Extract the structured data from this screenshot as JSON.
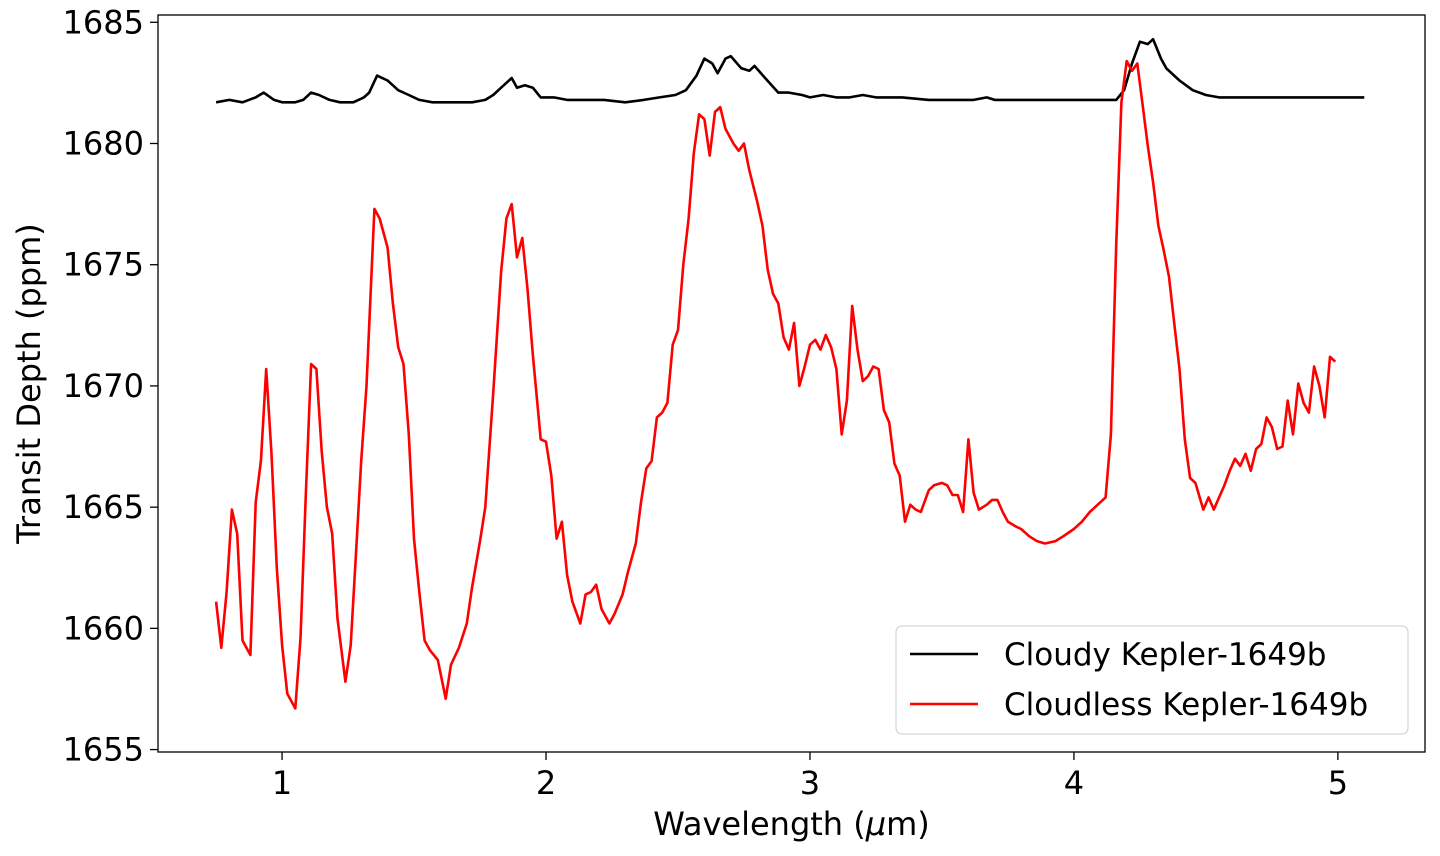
{
  "chart_data": {
    "type": "line",
    "xlabel": "Wavelength (",
    "xlabel_symbol": "μ",
    "xlabel_unit": "m)",
    "ylabel": "Transit Depth (ppm)",
    "xlim": [
      0.53,
      5.33
    ],
    "ylim": [
      1654.9,
      1685.3
    ],
    "xticks": [
      1,
      2,
      3,
      4,
      5
    ],
    "yticks": [
      1655,
      1660,
      1665,
      1670,
      1675,
      1680,
      1685
    ],
    "grid": false,
    "legend_position": "lower-right",
    "series": [
      {
        "name": "Cloudy Kepler-1649b",
        "color": "#000000",
        "points": [
          [
            0.75,
            1681.7
          ],
          [
            0.8,
            1681.8
          ],
          [
            0.85,
            1681.7
          ],
          [
            0.9,
            1681.9
          ],
          [
            0.93,
            1682.1
          ],
          [
            0.97,
            1681.8
          ],
          [
            1.0,
            1681.7
          ],
          [
            1.05,
            1681.7
          ],
          [
            1.08,
            1681.8
          ],
          [
            1.11,
            1682.1
          ],
          [
            1.14,
            1682.0
          ],
          [
            1.18,
            1681.8
          ],
          [
            1.22,
            1681.7
          ],
          [
            1.27,
            1681.7
          ],
          [
            1.31,
            1681.9
          ],
          [
            1.33,
            1682.1
          ],
          [
            1.36,
            1682.8
          ],
          [
            1.4,
            1682.6
          ],
          [
            1.44,
            1682.2
          ],
          [
            1.48,
            1682.0
          ],
          [
            1.52,
            1681.8
          ],
          [
            1.57,
            1681.7
          ],
          [
            1.65,
            1681.7
          ],
          [
            1.72,
            1681.7
          ],
          [
            1.77,
            1681.8
          ],
          [
            1.8,
            1682.0
          ],
          [
            1.83,
            1682.3
          ],
          [
            1.87,
            1682.7
          ],
          [
            1.89,
            1682.3
          ],
          [
            1.92,
            1682.4
          ],
          [
            1.95,
            1682.3
          ],
          [
            1.98,
            1681.9
          ],
          [
            2.03,
            1681.9
          ],
          [
            2.08,
            1681.8
          ],
          [
            2.15,
            1681.8
          ],
          [
            2.22,
            1681.8
          ],
          [
            2.3,
            1681.7
          ],
          [
            2.37,
            1681.8
          ],
          [
            2.43,
            1681.9
          ],
          [
            2.49,
            1682.0
          ],
          [
            2.53,
            1682.2
          ],
          [
            2.57,
            1682.8
          ],
          [
            2.6,
            1683.5
          ],
          [
            2.63,
            1683.3
          ],
          [
            2.65,
            1682.9
          ],
          [
            2.68,
            1683.5
          ],
          [
            2.7,
            1683.6
          ],
          [
            2.74,
            1683.1
          ],
          [
            2.77,
            1683.0
          ],
          [
            2.79,
            1683.2
          ],
          [
            2.83,
            1682.7
          ],
          [
            2.88,
            1682.1
          ],
          [
            2.92,
            1682.1
          ],
          [
            2.97,
            1682.0
          ],
          [
            3.0,
            1681.9
          ],
          [
            3.05,
            1682.0
          ],
          [
            3.1,
            1681.9
          ],
          [
            3.15,
            1681.9
          ],
          [
            3.2,
            1682.0
          ],
          [
            3.25,
            1681.9
          ],
          [
            3.35,
            1681.9
          ],
          [
            3.45,
            1681.8
          ],
          [
            3.55,
            1681.8
          ],
          [
            3.62,
            1681.8
          ],
          [
            3.67,
            1681.9
          ],
          [
            3.7,
            1681.8
          ],
          [
            3.8,
            1681.8
          ],
          [
            3.9,
            1681.8
          ],
          [
            4.0,
            1681.8
          ],
          [
            4.1,
            1681.8
          ],
          [
            4.16,
            1681.8
          ],
          [
            4.19,
            1682.2
          ],
          [
            4.22,
            1683.3
          ],
          [
            4.25,
            1684.2
          ],
          [
            4.28,
            1684.1
          ],
          [
            4.3,
            1684.3
          ],
          [
            4.33,
            1683.5
          ],
          [
            4.35,
            1683.1
          ],
          [
            4.4,
            1682.6
          ],
          [
            4.45,
            1682.2
          ],
          [
            4.5,
            1682.0
          ],
          [
            4.55,
            1681.9
          ],
          [
            4.62,
            1681.9
          ],
          [
            4.7,
            1681.9
          ],
          [
            4.78,
            1681.9
          ],
          [
            4.85,
            1681.9
          ],
          [
            4.92,
            1681.9
          ],
          [
            5.0,
            1681.9
          ],
          [
            5.05,
            1681.9
          ],
          [
            5.1,
            1681.9
          ]
        ]
      },
      {
        "name": "Cloudless Kepler-1649b",
        "color": "#ff0000",
        "points": [
          [
            0.75,
            1661.1
          ],
          [
            0.77,
            1659.2
          ],
          [
            0.79,
            1661.5
          ],
          [
            0.81,
            1664.9
          ],
          [
            0.83,
            1663.9
          ],
          [
            0.85,
            1659.5
          ],
          [
            0.88,
            1658.9
          ],
          [
            0.9,
            1665.2
          ],
          [
            0.92,
            1666.9
          ],
          [
            0.94,
            1670.7
          ],
          [
            0.96,
            1667.2
          ],
          [
            0.98,
            1662.5
          ],
          [
            1.0,
            1659.3
          ],
          [
            1.02,
            1657.3
          ],
          [
            1.05,
            1656.7
          ],
          [
            1.07,
            1659.6
          ],
          [
            1.09,
            1665.5
          ],
          [
            1.11,
            1670.9
          ],
          [
            1.13,
            1670.7
          ],
          [
            1.15,
            1667.3
          ],
          [
            1.17,
            1665.0
          ],
          [
            1.19,
            1663.9
          ],
          [
            1.21,
            1660.4
          ],
          [
            1.24,
            1657.8
          ],
          [
            1.26,
            1659.3
          ],
          [
            1.28,
            1663.1
          ],
          [
            1.3,
            1666.9
          ],
          [
            1.32,
            1670.0
          ],
          [
            1.35,
            1677.3
          ],
          [
            1.37,
            1676.9
          ],
          [
            1.4,
            1675.7
          ],
          [
            1.42,
            1673.4
          ],
          [
            1.44,
            1671.6
          ],
          [
            1.46,
            1670.9
          ],
          [
            1.48,
            1668.0
          ],
          [
            1.5,
            1663.7
          ],
          [
            1.52,
            1661.5
          ],
          [
            1.54,
            1659.5
          ],
          [
            1.56,
            1659.1
          ],
          [
            1.59,
            1658.7
          ],
          [
            1.62,
            1657.1
          ],
          [
            1.64,
            1658.5
          ],
          [
            1.67,
            1659.2
          ],
          [
            1.7,
            1660.2
          ],
          [
            1.72,
            1661.7
          ],
          [
            1.75,
            1663.6
          ],
          [
            1.77,
            1665.0
          ],
          [
            1.8,
            1669.7
          ],
          [
            1.83,
            1674.7
          ],
          [
            1.85,
            1676.9
          ],
          [
            1.87,
            1677.5
          ],
          [
            1.89,
            1675.3
          ],
          [
            1.91,
            1676.1
          ],
          [
            1.93,
            1674.0
          ],
          [
            1.95,
            1671.3
          ],
          [
            1.98,
            1667.8
          ],
          [
            2.0,
            1667.7
          ],
          [
            2.02,
            1666.3
          ],
          [
            2.04,
            1663.7
          ],
          [
            2.06,
            1664.4
          ],
          [
            2.08,
            1662.2
          ],
          [
            2.1,
            1661.1
          ],
          [
            2.13,
            1660.2
          ],
          [
            2.15,
            1661.4
          ],
          [
            2.17,
            1661.5
          ],
          [
            2.19,
            1661.8
          ],
          [
            2.21,
            1660.8
          ],
          [
            2.24,
            1660.2
          ],
          [
            2.26,
            1660.6
          ],
          [
            2.29,
            1661.4
          ],
          [
            2.31,
            1662.3
          ],
          [
            2.34,
            1663.5
          ],
          [
            2.36,
            1665.2
          ],
          [
            2.38,
            1666.6
          ],
          [
            2.4,
            1666.9
          ],
          [
            2.42,
            1668.7
          ],
          [
            2.44,
            1668.9
          ],
          [
            2.46,
            1669.3
          ],
          [
            2.48,
            1671.7
          ],
          [
            2.5,
            1672.3
          ],
          [
            2.52,
            1675.0
          ],
          [
            2.54,
            1676.9
          ],
          [
            2.56,
            1679.6
          ],
          [
            2.58,
            1681.2
          ],
          [
            2.6,
            1681.0
          ],
          [
            2.62,
            1679.5
          ],
          [
            2.64,
            1681.3
          ],
          [
            2.66,
            1681.5
          ],
          [
            2.68,
            1680.6
          ],
          [
            2.71,
            1680.0
          ],
          [
            2.73,
            1679.7
          ],
          [
            2.75,
            1680.0
          ],
          [
            2.77,
            1678.9
          ],
          [
            2.8,
            1677.6
          ],
          [
            2.82,
            1676.6
          ],
          [
            2.84,
            1674.8
          ],
          [
            2.86,
            1673.8
          ],
          [
            2.88,
            1673.4
          ],
          [
            2.9,
            1672.0
          ],
          [
            2.92,
            1671.5
          ],
          [
            2.94,
            1672.6
          ],
          [
            2.96,
            1670.0
          ],
          [
            2.98,
            1670.8
          ],
          [
            3.0,
            1671.7
          ],
          [
            3.02,
            1671.9
          ],
          [
            3.04,
            1671.5
          ],
          [
            3.06,
            1672.1
          ],
          [
            3.08,
            1671.6
          ],
          [
            3.1,
            1670.7
          ],
          [
            3.12,
            1668.0
          ],
          [
            3.14,
            1669.4
          ],
          [
            3.16,
            1673.3
          ],
          [
            3.18,
            1671.5
          ],
          [
            3.2,
            1670.2
          ],
          [
            3.22,
            1670.4
          ],
          [
            3.24,
            1670.8
          ],
          [
            3.26,
            1670.7
          ],
          [
            3.28,
            1669.0
          ],
          [
            3.3,
            1668.5
          ],
          [
            3.32,
            1666.8
          ],
          [
            3.34,
            1666.3
          ],
          [
            3.36,
            1664.4
          ],
          [
            3.38,
            1665.1
          ],
          [
            3.4,
            1664.9
          ],
          [
            3.42,
            1664.8
          ],
          [
            3.45,
            1665.7
          ],
          [
            3.47,
            1665.9
          ],
          [
            3.5,
            1666.0
          ],
          [
            3.52,
            1665.9
          ],
          [
            3.54,
            1665.5
          ],
          [
            3.56,
            1665.5
          ],
          [
            3.58,
            1664.8
          ],
          [
            3.6,
            1667.8
          ],
          [
            3.62,
            1665.6
          ],
          [
            3.64,
            1664.9
          ],
          [
            3.67,
            1665.1
          ],
          [
            3.69,
            1665.3
          ],
          [
            3.71,
            1665.3
          ],
          [
            3.73,
            1664.8
          ],
          [
            3.75,
            1664.4
          ],
          [
            3.78,
            1664.2
          ],
          [
            3.8,
            1664.1
          ],
          [
            3.83,
            1663.8
          ],
          [
            3.86,
            1663.6
          ],
          [
            3.89,
            1663.5
          ],
          [
            3.93,
            1663.6
          ],
          [
            3.96,
            1663.8
          ],
          [
            4.0,
            1664.1
          ],
          [
            4.03,
            1664.4
          ],
          [
            4.06,
            1664.8
          ],
          [
            4.09,
            1665.1
          ],
          [
            4.12,
            1665.4
          ],
          [
            4.14,
            1668.0
          ],
          [
            4.16,
            1675.8
          ],
          [
            4.18,
            1681.7
          ],
          [
            4.2,
            1683.4
          ],
          [
            4.22,
            1683.0
          ],
          [
            4.24,
            1683.3
          ],
          [
            4.26,
            1681.6
          ],
          [
            4.28,
            1679.9
          ],
          [
            4.3,
            1678.4
          ],
          [
            4.32,
            1676.6
          ],
          [
            4.34,
            1675.6
          ],
          [
            4.36,
            1674.5
          ],
          [
            4.38,
            1672.6
          ],
          [
            4.4,
            1670.7
          ],
          [
            4.42,
            1667.8
          ],
          [
            4.44,
            1666.2
          ],
          [
            4.46,
            1666.0
          ],
          [
            4.49,
            1664.9
          ],
          [
            4.51,
            1665.4
          ],
          [
            4.53,
            1664.9
          ],
          [
            4.55,
            1665.4
          ],
          [
            4.57,
            1665.9
          ],
          [
            4.59,
            1666.5
          ],
          [
            4.61,
            1667.0
          ],
          [
            4.63,
            1666.7
          ],
          [
            4.65,
            1667.2
          ],
          [
            4.67,
            1666.5
          ],
          [
            4.69,
            1667.4
          ],
          [
            4.71,
            1667.6
          ],
          [
            4.73,
            1668.7
          ],
          [
            4.75,
            1668.3
          ],
          [
            4.77,
            1667.4
          ],
          [
            4.79,
            1667.5
          ],
          [
            4.81,
            1669.4
          ],
          [
            4.83,
            1668.0
          ],
          [
            4.85,
            1670.1
          ],
          [
            4.87,
            1669.3
          ],
          [
            4.89,
            1668.9
          ],
          [
            4.91,
            1670.8
          ],
          [
            4.93,
            1670.0
          ],
          [
            4.95,
            1668.7
          ],
          [
            4.97,
            1671.2
          ],
          [
            4.99,
            1671.0
          ]
        ]
      }
    ]
  }
}
